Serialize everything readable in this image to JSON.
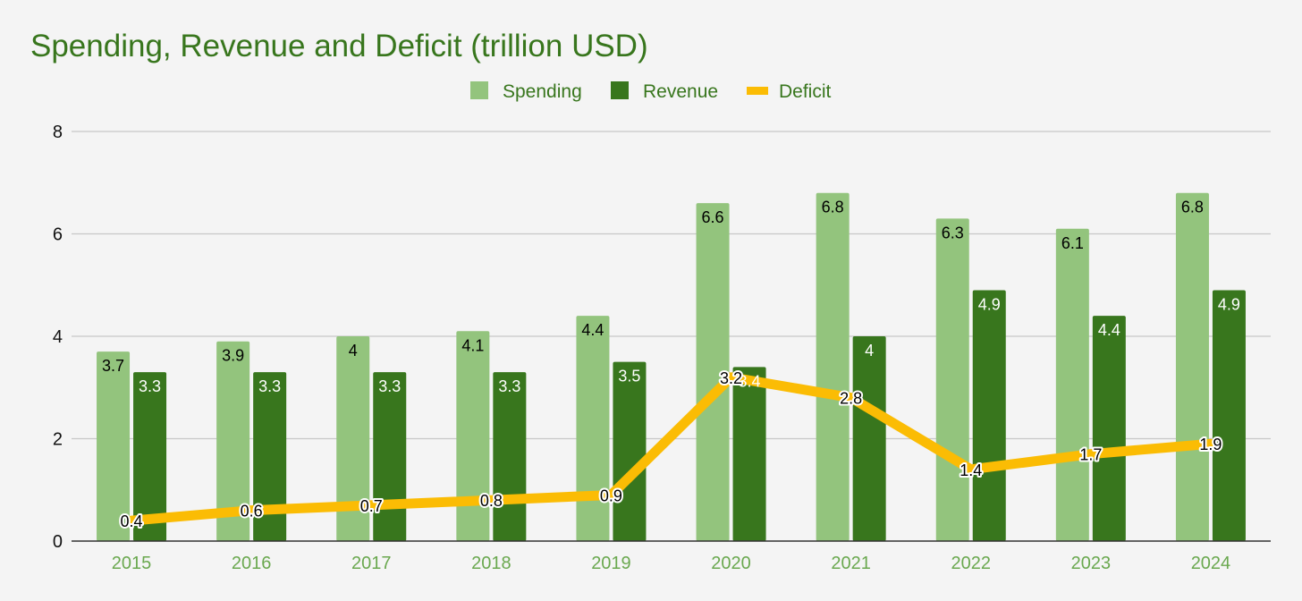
{
  "chart_data": {
    "type": "bar",
    "title": "Spending, Revenue and Deficit (trillion USD)",
    "categories": [
      "2015",
      "2016",
      "2017",
      "2018",
      "2019",
      "2020",
      "2021",
      "2022",
      "2023",
      "2024"
    ],
    "series": [
      {
        "name": "Spending",
        "type": "bar",
        "color": "#93c47d",
        "label_color": "#000000",
        "values": [
          3.7,
          3.9,
          4,
          4.1,
          4.4,
          6.6,
          6.8,
          6.3,
          6.1,
          6.8
        ]
      },
      {
        "name": "Revenue",
        "type": "bar",
        "color": "#38761d",
        "label_color": "#ffffff",
        "values": [
          3.3,
          3.3,
          3.3,
          3.3,
          3.5,
          3.4,
          4,
          4.9,
          4.4,
          4.9
        ]
      },
      {
        "name": "Deficit",
        "type": "line",
        "color": "#fbbc04",
        "values": [
          0.4,
          0.6,
          0.7,
          0.8,
          0.9,
          3.2,
          2.8,
          1.4,
          1.7,
          1.9
        ]
      }
    ],
    "ylim": [
      0,
      8
    ],
    "yticks": [
      0,
      2,
      4,
      6,
      8
    ],
    "xlabel": "",
    "ylabel": "",
    "legend_position": "top-center",
    "grid": true,
    "colors": {
      "title": "#38761d",
      "legend_text": "#38761d",
      "x_tick_text": "#6aa84f",
      "y_tick_text": "#111111",
      "grid": "#c8c8c8",
      "baseline": "#333333",
      "background": "#f4f4f4"
    }
  }
}
